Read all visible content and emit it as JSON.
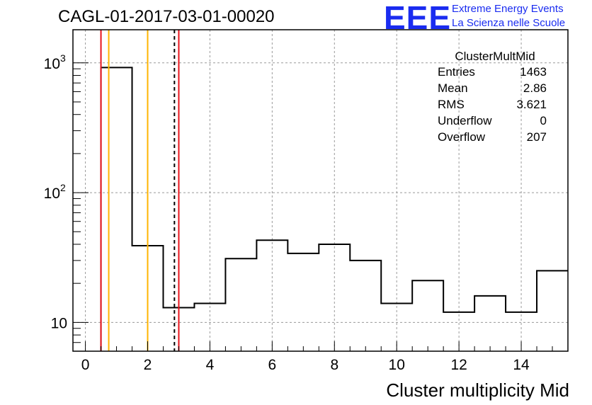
{
  "title": "CAGL-01-2017-03-01-00020",
  "logo": {
    "mark": "EEE",
    "line1": "Extreme Energy Events",
    "line2": "La Scienza nelle Scuole",
    "color": "#1a2cf0"
  },
  "stats": {
    "name": "ClusterMultMid",
    "rows": [
      {
        "label": "Entries",
        "value": "1463"
      },
      {
        "label": "Mean",
        "value": "2.86"
      },
      {
        "label": "RMS",
        "value": "3.621"
      },
      {
        "label": "Underflow",
        "value": "0"
      },
      {
        "label": "Overflow",
        "value": "207"
      }
    ]
  },
  "chart_data": {
    "type": "bar",
    "histogram": true,
    "xlabel": "Cluster multiplicity Mid",
    "ylabel": "",
    "xlim": [
      -0.4,
      15.5
    ],
    "ylim": [
      6,
      1800
    ],
    "yscale": "log",
    "grid": true,
    "x_ticks": [
      0,
      2,
      4,
      6,
      8,
      10,
      12,
      14
    ],
    "y_ticks": [
      10,
      100,
      1000
    ],
    "bin_edges": [
      0.5,
      1.5,
      2.5,
      3.5,
      4.5,
      5.5,
      6.5,
      7.5,
      8.5,
      9.5,
      10.5,
      11.5,
      12.5,
      13.5,
      14.5,
      15.5
    ],
    "values": [
      920,
      39,
      13,
      14,
      31,
      43,
      34,
      40,
      30,
      14,
      21,
      12,
      16,
      12,
      25
    ],
    "vlines": [
      {
        "x": 0.5,
        "color": "#e8141c",
        "style": "solid"
      },
      {
        "x": 0.75,
        "color": "#ffb400",
        "style": "solid"
      },
      {
        "x": 2.0,
        "color": "#ffb400",
        "style": "solid"
      },
      {
        "x": 2.86,
        "color": "#000000",
        "style": "dashed"
      },
      {
        "x": 3.0,
        "color": "#e8141c",
        "style": "solid"
      }
    ]
  }
}
